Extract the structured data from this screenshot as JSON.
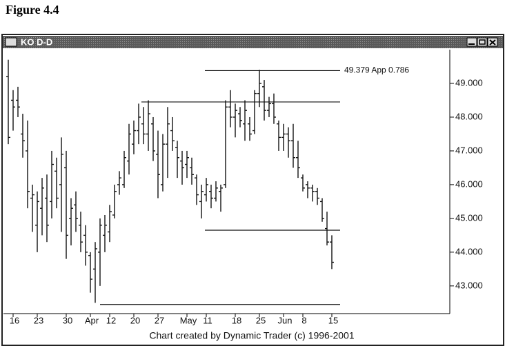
{
  "figure_label": "Figure 4.4",
  "window": {
    "title": "KO D-D"
  },
  "chart_data": {
    "type": "ohlc",
    "note": "Chart created by Dynamic Trader (c) 1996-2001",
    "color": "#111111",
    "ylim": [
      42.18,
      50.0
    ],
    "yticks": [
      {
        "value": 49,
        "label": "49.000"
      },
      {
        "value": 48,
        "label": "48.000"
      },
      {
        "value": 47,
        "label": "47.000"
      },
      {
        "value": 46,
        "label": "46.000"
      },
      {
        "value": 45,
        "label": "45.000"
      },
      {
        "value": 44,
        "label": "44.000"
      },
      {
        "value": 43,
        "label": "43.000"
      }
    ],
    "categories": [
      null,
      "16",
      null,
      null,
      null,
      null,
      "23",
      null,
      null,
      null,
      null,
      null,
      "30",
      null,
      null,
      null,
      null,
      "Apr",
      null,
      null,
      null,
      "12",
      null,
      null,
      null,
      null,
      "20",
      null,
      null,
      null,
      null,
      "27",
      null,
      null,
      null,
      null,
      null,
      "May",
      null,
      null,
      null,
      "11",
      null,
      null,
      null,
      null,
      null,
      "18",
      null,
      null,
      null,
      null,
      "25",
      null,
      null,
      null,
      null,
      "Jun",
      null,
      null,
      null,
      "8",
      null,
      null,
      null,
      null,
      null,
      "15"
    ],
    "high": [
      49.7,
      48.8,
      48.9,
      48.1,
      47.9,
      46.0,
      45.8,
      46.2,
      46.3,
      47.0,
      46.8,
      47.4,
      47.0,
      45.6,
      45.8,
      45.2,
      44.8,
      44.0,
      44.3,
      45.0,
      45.1,
      45.4,
      46.0,
      46.4,
      47.0,
      47.8,
      47.9,
      48.4,
      48.3,
      48.5,
      48.0,
      47.6,
      47.5,
      48.3,
      48.0,
      47.3,
      47.0,
      47.0,
      46.8,
      46.3,
      46.0,
      46.2,
      46.0,
      46.1,
      46.0,
      48.5,
      48.8,
      48.4,
      48.3,
      48.5,
      48.0,
      48.8,
      49.4,
      49.1,
      48.6,
      48.7,
      47.9,
      47.8,
      47.7,
      47.8,
      47.3,
      46.3,
      46.1,
      46.0,
      45.9,
      45.6,
      45.2,
      44.5
    ],
    "low": [
      47.2,
      47.6,
      48.0,
      46.8,
      45.3,
      44.6,
      44.0,
      44.5,
      44.3,
      45.0,
      45.3,
      44.6,
      43.8,
      44.2,
      44.6,
      44.0,
      43.6,
      42.8,
      42.5,
      43.0,
      44.0,
      44.3,
      45.0,
      45.7,
      45.9,
      46.3,
      46.9,
      47.2,
      47.2,
      47.0,
      46.7,
      45.6,
      45.8,
      46.2,
      47.0,
      46.2,
      46.0,
      46.2,
      46.0,
      45.4,
      45.0,
      45.5,
      45.3,
      45.5,
      45.2,
      45.9,
      47.7,
      47.4,
      47.7,
      47.3,
      47.3,
      47.5,
      48.3,
      47.9,
      48.0,
      47.8,
      47.0,
      47.0,
      46.8,
      46.5,
      46.2,
      45.8,
      45.6,
      45.5,
      45.4,
      44.9,
      44.2,
      43.5
    ],
    "open": [
      49.2,
      48.5,
      48.5,
      47.5,
      47.0,
      45.6,
      44.8,
      45.3,
      45.6,
      45.5,
      46.4,
      46.0,
      46.5,
      45.0,
      45.4,
      44.8,
      44.5,
      43.9,
      43.5,
      44.0,
      44.5,
      44.6,
      45.1,
      46.0,
      46.0,
      46.7,
      47.2,
      47.6,
      47.8,
      47.5,
      47.8,
      46.9,
      46.0,
      47.2,
      47.6,
      47.1,
      46.7,
      46.6,
      46.5,
      46.2,
      45.5,
      45.7,
      45.8,
      45.6,
      45.8,
      46.0,
      48.3,
      48.0,
      48.1,
      47.8,
      47.8,
      47.6,
      48.7,
      48.9,
      48.2,
      48.4,
      47.8,
      47.4,
      47.5,
      47.3,
      46.8,
      46.2,
      46.0,
      45.9,
      45.8,
      45.5,
      44.7,
      44.3
    ],
    "close": [
      47.4,
      48.3,
      48.3,
      47.3,
      45.8,
      45.7,
      45.5,
      45.9,
      44.8,
      46.6,
      45.6,
      46.9,
      44.5,
      45.3,
      45.0,
      44.3,
      44.0,
      43.2,
      44.1,
      44.8,
      44.8,
      45.2,
      45.8,
      46.2,
      46.8,
      47.5,
      47.6,
      48.0,
      47.5,
      48.1,
      47.0,
      46.3,
      47.2,
      47.8,
      47.3,
      46.8,
      46.5,
      46.8,
      46.3,
      45.7,
      45.8,
      46.0,
      45.6,
      45.9,
      45.9,
      48.3,
      48.0,
      48.2,
      47.9,
      48.2,
      47.5,
      48.7,
      49.0,
      48.2,
      48.4,
      48.0,
      47.4,
      47.5,
      47.3,
      46.8,
      46.5,
      45.9,
      45.9,
      45.8,
      45.6,
      45.0,
      44.3,
      43.7
    ],
    "levels": [
      {
        "value": 49.379,
        "label": "49.379 App 0.786"
      },
      {
        "value": 48.45
      },
      {
        "value": 44.65
      },
      {
        "value": 42.45
      }
    ]
  }
}
